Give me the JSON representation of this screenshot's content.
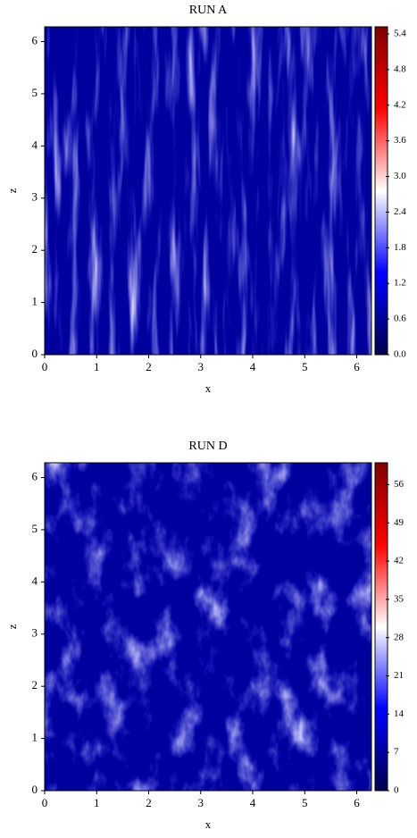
{
  "chart_data": [
    {
      "type": "heatmap",
      "title": "RUN A",
      "xlabel": "x",
      "ylabel": "z",
      "xlim": [
        0,
        6.283
      ],
      "ylim": [
        0,
        6.283
      ],
      "xticks": [
        0,
        1,
        2,
        3,
        4,
        5,
        6
      ],
      "yticks": [
        0,
        1,
        2,
        3,
        4,
        5,
        6
      ],
      "clim": [
        0,
        5.52
      ],
      "cticks": [
        {
          "value": 0,
          "label": "0.0"
        },
        0.6,
        1.2,
        1.8,
        2.4,
        {
          "value": 3,
          "label": "3.0"
        },
        3.6,
        4.2,
        4.8,
        5.4
      ],
      "colormap": [
        "#00004c",
        "#0000ff",
        "#ffffff",
        "#ff0000",
        "#7f0000"
      ]
    },
    {
      "type": "heatmap",
      "title": "RUN D",
      "xlabel": "x",
      "ylabel": "z",
      "xlim": [
        0,
        6.283
      ],
      "ylim": [
        0,
        6.283
      ],
      "xticks": [
        0,
        1,
        2,
        3,
        4,
        5,
        6
      ],
      "yticks": [
        0,
        1,
        2,
        3,
        4,
        5,
        6
      ],
      "clim": [
        0,
        60
      ],
      "cticks": [
        0,
        7,
        14,
        21,
        28,
        35,
        42,
        49,
        56
      ],
      "colormap": [
        "#00004c",
        "#0000ff",
        "#ffffff",
        "#ff0000",
        "#7f0000"
      ]
    }
  ]
}
